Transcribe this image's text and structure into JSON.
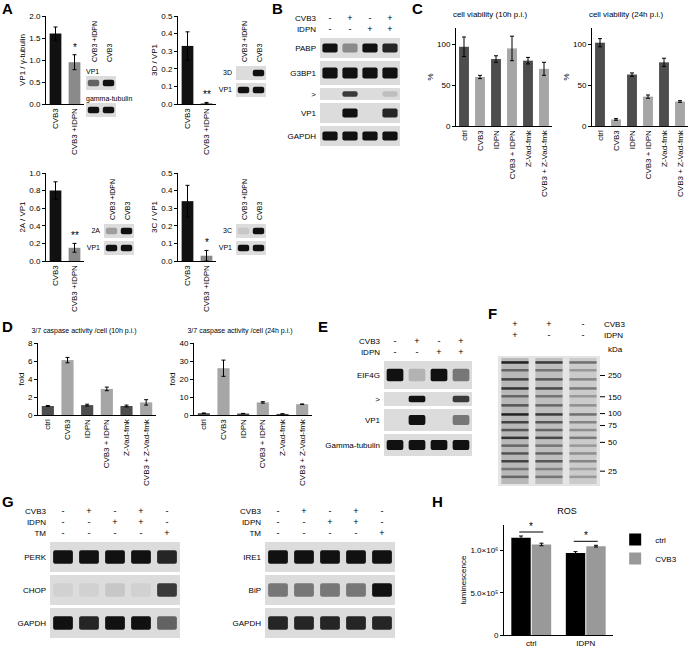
{
  "panel_labels": [
    "A",
    "B",
    "C",
    "D",
    "E",
    "F",
    "G",
    "H"
  ],
  "chart_data": [
    {
      "type": "bar",
      "ylabel": "VP1 / γ-tubulin",
      "categories": [
        "CVB3",
        "CVB3 +IDPN"
      ],
      "values": [
        1.6,
        0.95
      ],
      "errors": [
        0.15,
        0.17
      ],
      "colors": [
        "#111111",
        "#8a8a8a"
      ],
      "ylim": [
        0,
        2
      ],
      "yticks": [
        {
          "value": 0,
          "label": "0.0"
        },
        0.5,
        {
          "value": 1,
          "label": "1.0"
        },
        1.5,
        {
          "value": 2,
          "label": "2.0"
        }
      ],
      "annotations": [
        {
          "category": "CVB3 +IDPN",
          "text": "*"
        }
      ]
    },
    {
      "type": "bar",
      "ylabel": "3D / VP1",
      "categories": [
        "CVB3",
        "CVB3 +IDPN"
      ],
      "values": [
        0.33,
        0.005
      ],
      "errors": [
        0.08,
        0.004
      ],
      "colors": [
        "#111111",
        "#8a8a8a"
      ],
      "ylim": [
        0,
        0.5
      ],
      "yticks": [
        {
          "value": 0,
          "label": "0.0"
        },
        0.1,
        0.2,
        0.3,
        0.4,
        0.5
      ],
      "annotations": [
        {
          "category": "CVB3 +IDPN",
          "text": "**"
        }
      ]
    },
    {
      "type": "bar",
      "ylabel": "2A / VP1",
      "categories": [
        "CVB3",
        "CVB3 +IDPN"
      ],
      "values": [
        0.8,
        0.15
      ],
      "errors": [
        0.1,
        0.05
      ],
      "colors": [
        "#111111",
        "#8a8a8a"
      ],
      "ylim": [
        0,
        1
      ],
      "yticks": [
        {
          "value": 0,
          "label": "0.0"
        },
        0.2,
        0.4,
        0.6,
        0.8,
        {
          "value": 1,
          "label": "1.0"
        }
      ],
      "annotations": [
        {
          "category": "CVB3 +IDPN",
          "text": "**"
        }
      ]
    },
    {
      "type": "bar",
      "ylabel": "3C / VP1",
      "categories": [
        "CVB3",
        "CVB3 +IDPN"
      ],
      "values": [
        0.34,
        0.03
      ],
      "errors": [
        0.09,
        0.03
      ],
      "colors": [
        "#111111",
        "#8a8a8a"
      ],
      "ylim": [
        0,
        0.5
      ],
      "yticks": [
        {
          "value": 0,
          "label": "0.0"
        },
        0.1,
        0.2,
        0.3,
        0.4,
        0.5
      ],
      "annotations": [
        {
          "category": "CVB3 +IDPN",
          "text": "*"
        }
      ]
    },
    {
      "type": "bar",
      "title": "cell viability (10h p.i.)",
      "ylabel": "%",
      "categories": [
        "ctrl",
        "CVB3",
        "IDPN",
        "CVB3 + IDPN",
        "Z-Vad-fmk",
        "CVB3 + Z-Vad-fmk"
      ],
      "values": [
        97,
        60,
        82,
        95,
        80,
        70
      ],
      "errors": [
        12,
        2,
        4,
        15,
        4,
        8
      ],
      "colors": [
        "#4d4d4d",
        "#a6a6a6",
        "#4d4d4d",
        "#a6a6a6",
        "#4d4d4d",
        "#a6a6a6"
      ],
      "ylim": [
        0,
        120
      ],
      "yticks": [
        0,
        50,
        100
      ]
    },
    {
      "type": "bar",
      "title": "cell viability (24h p.i.)",
      "ylabel": "%",
      "categories": [
        "ctrl",
        "CVB3",
        "IDPN",
        "CVB3 + IDPN",
        "Z-Vad-fmk",
        "CVB3 + Z-Vad-fmk"
      ],
      "values": [
        102,
        8,
        63,
        36,
        78,
        30
      ],
      "errors": [
        5,
        1,
        2,
        2,
        5,
        1
      ],
      "colors": [
        "#4d4d4d",
        "#a6a6a6",
        "#4d4d4d",
        "#a6a6a6",
        "#4d4d4d",
        "#a6a6a6"
      ],
      "ylim": [
        0,
        120
      ],
      "yticks": [
        0,
        50,
        100
      ]
    },
    {
      "type": "bar",
      "title": "3/7 caspase activity /cell (10h p.i.)",
      "ylabel": "fold",
      "categories": [
        "ctrl",
        "CVB3",
        "IDPN",
        "CVB3 + IDPN",
        "Z-Vad-fmk",
        "CVB3 + Z-Vad-fmk"
      ],
      "values": [
        1,
        6.1,
        1.1,
        2.9,
        1,
        1.4
      ],
      "errors": [
        0.05,
        0.3,
        0.1,
        0.2,
        0.1,
        0.3
      ],
      "colors": [
        "#4d4d4d",
        "#a6a6a6",
        "#4d4d4d",
        "#a6a6a6",
        "#4d4d4d",
        "#a6a6a6"
      ],
      "ylim": [
        0,
        8
      ],
      "yticks": [
        0,
        2,
        4,
        6,
        8
      ]
    },
    {
      "type": "bar",
      "title": "3/7 caspase activity /cell (24h p.i.)",
      "ylabel": "fold",
      "categories": [
        "ctrl",
        "CVB3",
        "IDPN",
        "CVB3 + IDPN",
        "Z-Vad-fmk",
        "CVB3 + Z-Vad-fmk"
      ],
      "values": [
        1,
        26,
        0.8,
        7,
        0.6,
        6
      ],
      "errors": [
        0.1,
        4.5,
        0.1,
        0.4,
        0.05,
        0.1
      ],
      "colors": [
        "#4d4d4d",
        "#a6a6a6",
        "#4d4d4d",
        "#a6a6a6",
        "#4d4d4d",
        "#a6a6a6"
      ],
      "ylim": [
        0,
        40
      ],
      "yticks": [
        0,
        10,
        20,
        30,
        40
      ]
    },
    {
      "type": "bar",
      "title": "ROS",
      "ylabel": "luminescence",
      "categories": [
        "ctrl",
        "IDPN"
      ],
      "series": [
        {
          "name": "ctrl",
          "color": "#000000",
          "values": [
            1150000,
            970000
          ],
          "errors": [
            20000,
            15000
          ]
        },
        {
          "name": "CVB3",
          "color": "#999999",
          "values": [
            1070000,
            1050000
          ],
          "errors": [
            15000,
            10000
          ]
        }
      ],
      "ylim": [
        0,
        1300000
      ],
      "yticks": [
        0,
        {
          "value": 500000,
          "label": "5.0×10⁵"
        },
        {
          "value": 1000000,
          "label": "1.0×10⁶"
        }
      ],
      "legend": "right",
      "annotations": [
        {
          "category": "ctrl",
          "text": "*"
        },
        {
          "category": "IDPN",
          "text": "*"
        }
      ]
    }
  ],
  "blots": [
    {
      "columns": [
        "CVB3 +IDPN",
        "CVB3"
      ],
      "rows": [
        {
          "label": "VP1",
          "bands": [
            0.6,
            1
          ]
        },
        {
          "label": "gamma-tubulin",
          "bands": [
            1,
            1
          ]
        }
      ]
    },
    {
      "columns": [
        "CVB3 +IDPN",
        "CVB3"
      ],
      "rows": [
        {
          "label": "3D",
          "bands": [
            0,
            1
          ]
        },
        {
          "label": "VP1",
          "bands": [
            1,
            1
          ]
        }
      ]
    },
    {
      "columns": [
        "CVB3 +IDPN",
        "CVB3"
      ],
      "rows": [
        {
          "label": "2A",
          "bands": [
            0.3,
            1
          ]
        },
        {
          "label": "VP1",
          "bands": [
            1,
            1
          ]
        }
      ]
    },
    {
      "columns": [
        "CVB3 +IDPN",
        "CVB3"
      ],
      "rows": [
        {
          "label": "3C",
          "bands": [
            0.1,
            1
          ]
        },
        {
          "label": "VP1",
          "bands": [
            1,
            1
          ]
        }
      ]
    },
    {
      "header": [
        {
          "label": "CVB3",
          "marks": [
            "-",
            "+",
            "-",
            "+"
          ]
        },
        {
          "label": "IDPN",
          "marks": [
            "-",
            "-",
            "+",
            "+"
          ]
        }
      ],
      "rows": [
        {
          "label": "PABP",
          "bands": [
            1,
            0.4,
            1,
            0.9
          ]
        },
        {
          "label": "G3BP1",
          "bands": [
            1,
            1,
            1,
            1
          ]
        },
        {
          "label": ">",
          "bands": [
            0,
            0.8,
            0,
            0.15
          ]
        },
        {
          "label": "VP1",
          "bands": [
            0,
            1,
            0,
            0.9
          ]
        },
        {
          "label": "GAPDH",
          "bands": [
            1,
            1,
            1,
            1
          ]
        }
      ]
    },
    {
      "header": [
        {
          "label": "CVB3",
          "marks": [
            "-",
            "+",
            "-",
            "+"
          ]
        },
        {
          "label": "IDPN",
          "marks": [
            "-",
            "-",
            "+",
            "+"
          ]
        }
      ],
      "rows": [
        {
          "label": "EIF4G",
          "bands": [
            1,
            0.2,
            1,
            0.5
          ]
        },
        {
          "label": ">",
          "bands": [
            0,
            1,
            0,
            0.8
          ]
        },
        {
          "label": "VP1",
          "bands": [
            0,
            1,
            0,
            0.5
          ]
        },
        {
          "label": "Gamma-tubulin",
          "bands": [
            1,
            1,
            1,
            1
          ]
        }
      ]
    },
    {
      "header": [
        {
          "label": "CVB3",
          "marks": [
            "+",
            "+",
            "-"
          ]
        },
        {
          "label": "IDPN",
          "marks": [
            "+",
            "-",
            "-"
          ]
        }
      ],
      "marker_unit": "kDa",
      "markers": [
        250,
        150,
        100,
        75,
        50,
        25
      ],
      "lanes": [
        1,
        0.85,
        0.55
      ]
    },
    {
      "header": [
        {
          "label": "CVB3",
          "marks": [
            "-",
            "+",
            "-",
            "+",
            "-"
          ]
        },
        {
          "label": "IDPN",
          "marks": [
            "-",
            "-",
            "+",
            "+",
            "-"
          ]
        },
        {
          "label": "TM",
          "marks": [
            "-",
            "-",
            "-",
            "-",
            "+"
          ]
        }
      ],
      "rows": [
        {
          "label": "PERK",
          "bands": [
            1,
            1,
            1,
            1,
            0.9
          ]
        },
        {
          "label": "CHOP",
          "bands": [
            0.05,
            0.05,
            0.1,
            0.05,
            0.8
          ]
        },
        {
          "label": "GAPDH",
          "bands": [
            1,
            0.9,
            1,
            1,
            0.6
          ]
        }
      ]
    },
    {
      "header": [
        {
          "label": "CVB3",
          "marks": [
            "-",
            "+",
            "-",
            "+",
            "-"
          ]
        },
        {
          "label": "IDPN",
          "marks": [
            "-",
            "-",
            "+",
            "+",
            "-"
          ]
        },
        {
          "label": "TM",
          "marks": [
            "-",
            "-",
            "-",
            "-",
            "+"
          ]
        }
      ],
      "rows": [
        {
          "label": "IRE1",
          "bands": [
            1,
            1,
            1,
            1,
            1
          ]
        },
        {
          "label": "BiP",
          "bands": [
            0.5,
            0.5,
            0.5,
            0.5,
            1
          ]
        },
        {
          "label": "GAPDH",
          "bands": [
            0.9,
            0.9,
            0.9,
            0.9,
            0.9
          ]
        }
      ]
    }
  ]
}
